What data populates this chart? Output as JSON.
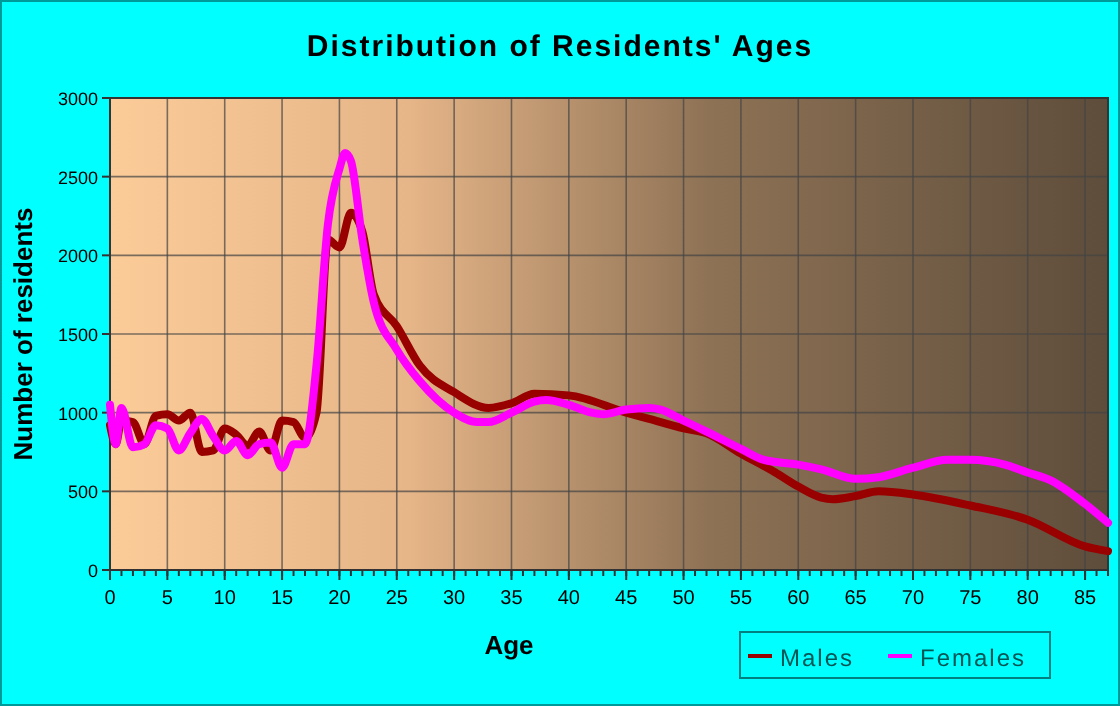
{
  "chart_data": {
    "type": "line",
    "title": "Distribution of Residents' Ages",
    "xlabel": "Age",
    "ylabel": "Number of residents",
    "xlim": [
      0,
      87
    ],
    "xticks": [
      0,
      5,
      10,
      15,
      20,
      25,
      30,
      35,
      40,
      45,
      50,
      55,
      60,
      65,
      70,
      75,
      80,
      85
    ],
    "ylim": [
      0,
      3000
    ],
    "yticks": [
      0,
      500,
      1000,
      1500,
      2000,
      2500,
      3000
    ],
    "grid": true,
    "legend": "bottom right",
    "line_style": "solid",
    "series": [
      {
        "name": "Males",
        "color": "#990000",
        "x": [
          0,
          0.5,
          1,
          2,
          3,
          4,
          5,
          6,
          7,
          8,
          9,
          10,
          11,
          12,
          13,
          14,
          15,
          16,
          17,
          18,
          19,
          20,
          21,
          22,
          23,
          25,
          27,
          30,
          33,
          35,
          37,
          40,
          45,
          47,
          50,
          52,
          55,
          58,
          60,
          62,
          63,
          65,
          67,
          70,
          75,
          80,
          85,
          87
        ],
        "values": [
          920,
          800,
          950,
          940,
          800,
          980,
          990,
          950,
          1000,
          750,
          760,
          900,
          860,
          790,
          880,
          760,
          950,
          940,
          840,
          1000,
          2100,
          2050,
          2270,
          2150,
          1750,
          1550,
          1300,
          1130,
          1030,
          1060,
          1120,
          1110,
          1000,
          960,
          900,
          870,
          740,
          620,
          530,
          460,
          450,
          470,
          500,
          480,
          410,
          320,
          150,
          120
        ]
      },
      {
        "name": "Females",
        "color": "#ff00ff",
        "x": [
          0,
          0.5,
          1,
          2,
          3,
          4,
          5,
          6,
          7,
          8,
          9,
          10,
          11,
          12,
          13,
          14,
          15,
          16,
          17,
          18,
          19,
          20,
          20.5,
          21,
          22,
          23,
          25,
          27,
          30,
          32,
          33,
          35,
          37,
          38,
          40,
          42,
          43,
          45,
          47,
          48,
          50,
          52,
          55,
          57,
          60,
          62,
          65,
          67,
          70,
          73,
          75,
          78,
          80,
          82,
          85,
          87
        ],
        "values": [
          1050,
          800,
          1030,
          780,
          800,
          920,
          900,
          760,
          870,
          960,
          850,
          760,
          820,
          730,
          800,
          810,
          650,
          800,
          800,
          1300,
          2200,
          2550,
          2650,
          2600,
          2100,
          1700,
          1400,
          1200,
          1000,
          940,
          940,
          1000,
          1070,
          1080,
          1050,
          1000,
          990,
          1020,
          1030,
          1020,
          950,
          880,
          770,
          700,
          670,
          640,
          580,
          590,
          650,
          700,
          700,
          670,
          620,
          570,
          420,
          300
        ]
      }
    ]
  }
}
